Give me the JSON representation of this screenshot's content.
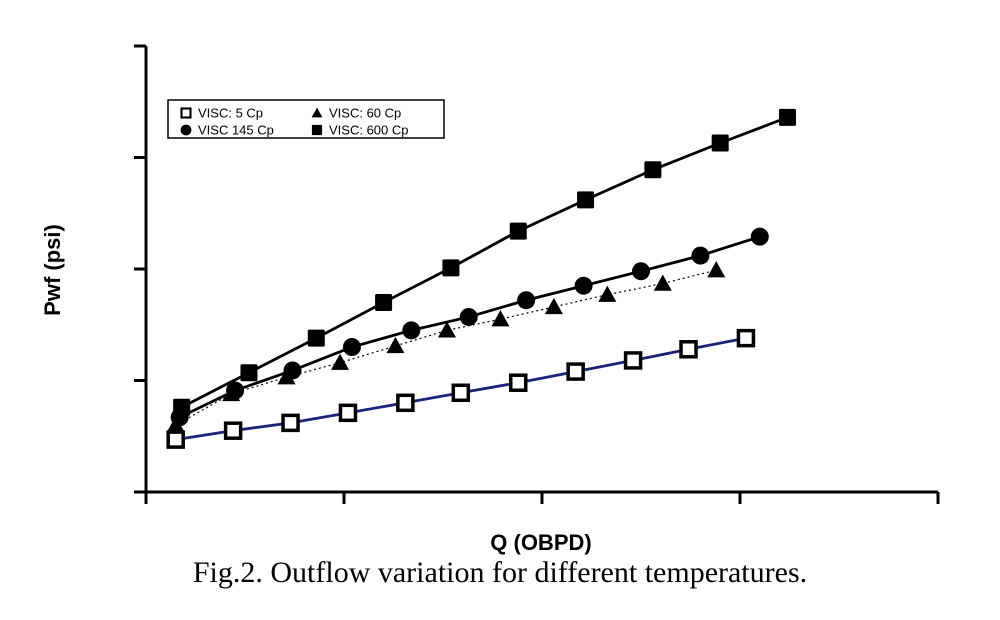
{
  "caption": "Fig.2. Outflow variation for different temperatures.",
  "chart_data": {
    "type": "line",
    "title": "",
    "xlabel": "Q (OBPD)",
    "ylabel": "Pwf (psi)",
    "xlim": [
      0,
      4
    ],
    "ylim": [
      0,
      4
    ],
    "grid": false,
    "tick_labels_shown": false,
    "legend_position": "top-left",
    "series": [
      {
        "name": "VISC: 5 Cp",
        "marker": "open-square",
        "line_color": "#1a237e",
        "line_style": "solid",
        "x": [
          0.15,
          0.44,
          0.73,
          1.02,
          1.31,
          1.59,
          1.88,
          2.17,
          2.46,
          2.74,
          3.03
        ],
        "y": [
          0.47,
          0.55,
          0.62,
          0.71,
          0.8,
          0.89,
          0.98,
          1.08,
          1.18,
          1.28,
          1.38
        ]
      },
      {
        "name": "VISC: 60 Cp",
        "marker": "filled-triangle",
        "line_color": "#000000",
        "line_style": "dotted",
        "x": [
          0.15,
          0.43,
          0.71,
          0.98,
          1.26,
          1.52,
          1.79,
          2.06,
          2.33,
          2.61,
          2.88
        ],
        "y": [
          0.6,
          0.88,
          1.03,
          1.16,
          1.31,
          1.45,
          1.55,
          1.66,
          1.77,
          1.87,
          1.99
        ]
      },
      {
        "name": "VISC 145 Cp",
        "marker": "filled-circle",
        "line_color": "#000000",
        "line_style": "solid",
        "x": [
          0.17,
          0.45,
          0.74,
          1.04,
          1.34,
          1.63,
          1.92,
          2.21,
          2.5,
          2.8,
          3.1
        ],
        "y": [
          0.67,
          0.91,
          1.09,
          1.3,
          1.45,
          1.57,
          1.72,
          1.85,
          1.98,
          2.12,
          2.29
        ]
      },
      {
        "name": "VISC: 600 Cp",
        "marker": "filled-square",
        "line_color": "#000000",
        "line_style": "solid",
        "x": [
          0.18,
          0.52,
          0.86,
          1.2,
          1.54,
          1.88,
          2.22,
          2.56,
          2.9,
          3.24
        ],
        "y": [
          0.76,
          1.07,
          1.38,
          1.7,
          2.01,
          2.34,
          2.62,
          2.89,
          3.13,
          3.36
        ]
      }
    ]
  }
}
